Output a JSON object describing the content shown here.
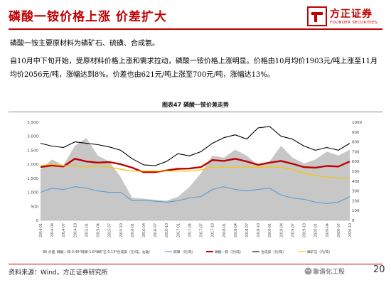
{
  "header": {
    "title": "磷酸一铵价格上涨 价差扩大",
    "logo_cn": "方正证券",
    "logo_en": "FOUNDER SECURITIES"
  },
  "body": {
    "para1": "磷酸一铵主要原材料为磷矿石、硫磺、合成氨。",
    "para2": "自10月中下旬开始，受原材料价格上涨和需求拉动，磷酸一铵价格上涨明显。价格由10月均价1903元/吨上涨至11月均价2056元/吨，涨幅达到8%。价差也由621元/吨上涨至700元/吨，涨幅达13%。"
  },
  "chart_title": "图表47 磷酸一铵价差走势",
  "footer": {
    "source": "资料来源：Wind，方正证券研究所",
    "watermark": "靠谱化工股",
    "page": "20"
  },
  "colors": {
    "accent": "#c00000",
    "spread": "#b4b4b4",
    "sulfur": "#5b9bd5",
    "map": "#c00000",
    "ammonia": "#000000",
    "rock": "#ffc000"
  },
  "chart_data": {
    "type": "line",
    "x": [
      "2014-01",
      "2014-04",
      "2014-07",
      "2014-10",
      "2015-01",
      "2015-04",
      "2015-07",
      "2015-10",
      "2016-01",
      "2016-04",
      "2016-07",
      "2016-10",
      "2017-01",
      "2017-04",
      "2017-07",
      "2017-10",
      "2018-01",
      "2018-04",
      "2018-07",
      "2018-10",
      "2019-01",
      "2019-04",
      "2019-07",
      "2019-10",
      "2020-01",
      "2020-04",
      "2020-07",
      "2020-10"
    ],
    "left_ylim": [
      0,
      3500
    ],
    "left_yticks": [
      "0",
      "500",
      "1,000",
      "1,500",
      "2,000",
      "2,500",
      "3,000",
      "3,500"
    ],
    "right_ylim": [
      0,
      1000
    ],
    "right_yticks": [
      "0",
      "100",
      "200",
      "300",
      "400",
      "500",
      "600",
      "700",
      "800",
      "900",
      "1000"
    ],
    "legend": [
      "价差",
      "磷酸一铵-0.46*硫磺-1.6*磷矿石-0.13*合成氨（元/吨，右轴）",
      "硫磺（元/吨）",
      "磷酸一铵（元/吨）",
      "合成氨（元/吨）",
      "磷矿石（元/吨）"
    ],
    "series": [
      {
        "name": "价差",
        "axis": "right",
        "kind": "area",
        "values": [
          520,
          620,
          560,
          760,
          840,
          660,
          600,
          440,
          230,
          220,
          210,
          200,
          240,
          340,
          480,
          660,
          640,
          720,
          660,
          560,
          600,
          760,
          640,
          580,
          620,
          700,
          660,
          720
        ]
      },
      {
        "name": "磷酸一铵（元/吨）",
        "axis": "left",
        "kind": "line",
        "values": [
          1900,
          1960,
          1920,
          2200,
          2100,
          2060,
          2080,
          2000,
          1880,
          1720,
          1720,
          1780,
          1840,
          1850,
          1900,
          2150,
          2120,
          2200,
          2100,
          1980,
          2060,
          2120,
          2020,
          1900,
          1880,
          1940,
          1920,
          2100
        ]
      },
      {
        "name": "合成氨（元/吨）",
        "axis": "left",
        "kind": "line",
        "values": [
          2750,
          2650,
          2600,
          2800,
          2750,
          2700,
          2620,
          2500,
          2200,
          1980,
          1950,
          2100,
          2380,
          2300,
          2450,
          2750,
          2950,
          3050,
          2900,
          3300,
          3350,
          3000,
          2900,
          2650,
          2500,
          2600,
          2500,
          2750
        ]
      },
      {
        "name": "磷矿石（元/吨）",
        "axis": "left",
        "kind": "line",
        "values": [
          1950,
          2000,
          1950,
          1950,
          1900,
          1950,
          1900,
          1820,
          1760,
          1760,
          1760,
          1760,
          1760,
          1760,
          1800,
          1900,
          1900,
          1900,
          1900,
          1900,
          1900,
          1900,
          1820,
          1680,
          1600,
          1550,
          1500,
          1500
        ]
      },
      {
        "name": "硫磺（元/吨）",
        "axis": "left",
        "kind": "line",
        "values": [
          1000,
          1150,
          1100,
          1200,
          1150,
          1050,
          1000,
          1000,
          700,
          720,
          680,
          650,
          700,
          800,
          850,
          1100,
          1200,
          1100,
          1050,
          1100,
          1150,
          900,
          800,
          750,
          650,
          600,
          650,
          850
        ]
      }
    ]
  }
}
